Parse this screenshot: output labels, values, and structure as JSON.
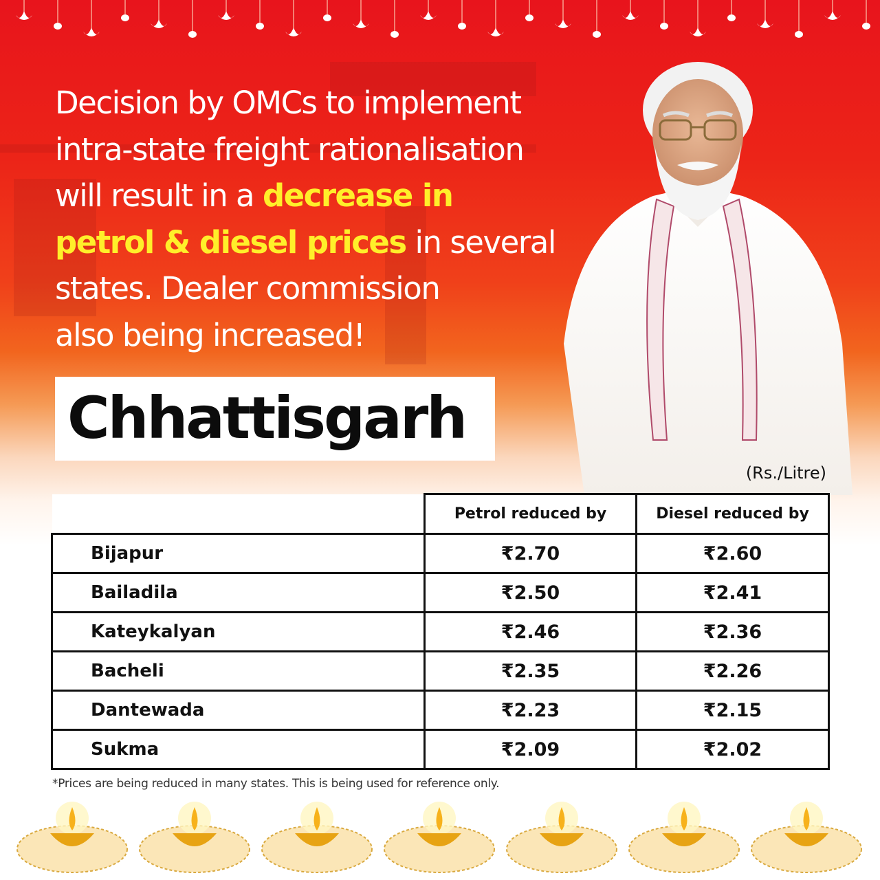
{
  "headline": {
    "line1": "Decision by OMCs to implement",
    "line2": "intra-state freight rationalisation",
    "line3_pre": "will result in a ",
    "line3_highlight": "decrease in",
    "line4_highlight": "petrol & diesel prices",
    "line4_post": " in several",
    "line5": "states. Dealer commission",
    "line6": "also being increased!"
  },
  "state": "Chhattisgarh",
  "unit": "(Rs./Litre)",
  "table": {
    "headers": [
      "Petrol reduced by",
      "Diesel reduced by"
    ],
    "rows": [
      {
        "location": "Bijapur",
        "petrol": "₹2.70",
        "diesel": "₹2.60"
      },
      {
        "location": "Bailadila",
        "petrol": "₹2.50",
        "diesel": "₹2.41"
      },
      {
        "location": "Kateykalyan",
        "petrol": "₹2.46",
        "diesel": "₹2.36"
      },
      {
        "location": "Bacheli",
        "petrol": "₹2.35",
        "diesel": "₹2.26"
      },
      {
        "location": "Dantewada",
        "petrol": "₹2.23",
        "diesel": "₹2.15"
      },
      {
        "location": "Sukma",
        "petrol": "₹2.09",
        "diesel": "₹2.02"
      }
    ]
  },
  "footnote": "*Prices are being reduced in many states. This is being used for reference only.",
  "colors": {
    "background_top": "#e8141c",
    "highlight": "#ffef2a",
    "text": "#111111"
  },
  "decorations": {
    "garland": "lotus-lamp-garland-icon",
    "footer": "diya-lamp-icon",
    "portrait": "person-portrait"
  }
}
